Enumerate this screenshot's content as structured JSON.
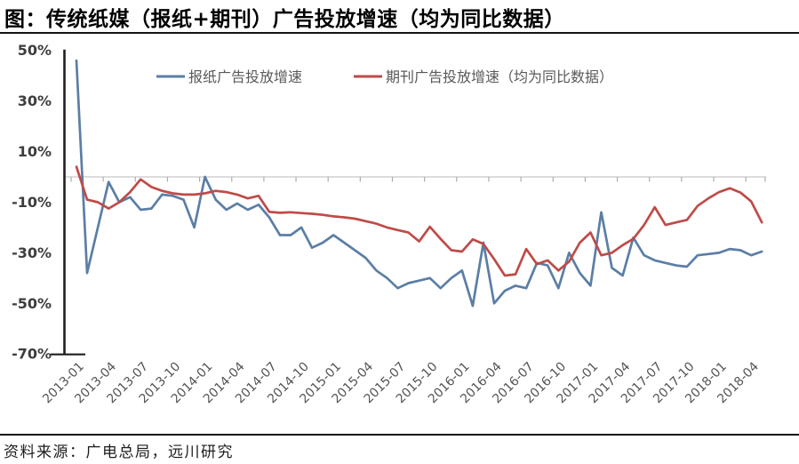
{
  "chart_data": {
    "type": "line",
    "title": "图：传统纸媒（报纸+期刊）广告投放增速（均为同比数据）",
    "xlabel": "",
    "ylabel": "",
    "ylim": [
      -70,
      50
    ],
    "yticks": [
      50,
      30,
      10,
      -10,
      -30,
      -50,
      -70
    ],
    "grid": "horizontal zero line only, with small category tick marks",
    "legend_position": "top-center-inside",
    "x": [
      "2013-01",
      "2013-02",
      "2013-03",
      "2013-04",
      "2013-05",
      "2013-06",
      "2013-07",
      "2013-08",
      "2013-09",
      "2013-10",
      "2013-11",
      "2013-12",
      "2014-01",
      "2014-02",
      "2014-03",
      "2014-04",
      "2014-05",
      "2014-06",
      "2014-07",
      "2014-08",
      "2014-09",
      "2014-10",
      "2014-11",
      "2014-12",
      "2015-01",
      "2015-02",
      "2015-03",
      "2015-04",
      "2015-05",
      "2015-06",
      "2015-07",
      "2015-08",
      "2015-09",
      "2015-10",
      "2015-11",
      "2015-12",
      "2016-01",
      "2016-02",
      "2016-03",
      "2016-04",
      "2016-05",
      "2016-06",
      "2016-07",
      "2016-08",
      "2016-09",
      "2016-10",
      "2016-11",
      "2016-12",
      "2017-01",
      "2017-02",
      "2017-03",
      "2017-04",
      "2017-05",
      "2017-06",
      "2017-07",
      "2017-08",
      "2017-09",
      "2017-10",
      "2017-11",
      "2017-12",
      "2018-01",
      "2018-02",
      "2018-03",
      "2018-04",
      "2018-05"
    ],
    "x_tick_labels": [
      "2013-01",
      "2013-04",
      "2013-07",
      "2013-10",
      "2014-01",
      "2014-04",
      "2014-07",
      "2014-10",
      "2015-01",
      "2015-04",
      "2015-07",
      "2015-10",
      "2016-01",
      "2016-04",
      "2016-07",
      "2016-10",
      "2017-01",
      "2017-04",
      "2017-07",
      "2017-10",
      "2018-01",
      "2018-04"
    ],
    "series": [
      {
        "name": "报纸广告投放增速",
        "color": "#5B7EA6",
        "unit": "%",
        "values": [
          46,
          -38,
          -20,
          -2,
          -10,
          -8,
          -13,
          -12.5,
          -7,
          -7.5,
          -9,
          -20,
          0,
          -9,
          -13,
          -10.5,
          -13,
          -11,
          -16,
          -23,
          -23,
          -20,
          -28,
          -26,
          -23,
          -26,
          -29,
          -32,
          -37,
          -40,
          -44,
          -42,
          -41,
          -40,
          -44,
          -40,
          -37,
          -51,
          -26,
          -50,
          -45,
          -43,
          -44,
          -34,
          -35,
          -44,
          -30,
          -38,
          -43,
          -14,
          -36,
          -39,
          -24,
          -31,
          -33,
          -34,
          -35,
          -35.5,
          -31,
          -30.5,
          -30,
          -28.5,
          -29,
          -31,
          -29.5
        ]
      },
      {
        "name": "期刊广告投放增速（均为同比数据）",
        "color": "#BE4B48",
        "unit": "%",
        "values": [
          4,
          -9,
          -10,
          -12.5,
          -10,
          -6,
          -1,
          -4,
          -5.5,
          -6.5,
          -7,
          -7,
          -6.5,
          -5.5,
          -6,
          -7,
          -8.5,
          -7.5,
          -13.8,
          -14.2,
          -14,
          -14.3,
          -14.6,
          -15,
          -15.6,
          -16,
          -16.5,
          -17.5,
          -18.5,
          -20,
          -21,
          -22,
          -25.5,
          -19.7,
          -24.5,
          -29,
          -29.5,
          -24.7,
          -26.5,
          -32.5,
          -39,
          -38.5,
          -28.5,
          -34.5,
          -33,
          -37,
          -33.5,
          -26,
          -22,
          -31,
          -30,
          -27,
          -24.5,
          -19,
          -12,
          -19,
          -18,
          -17,
          -11.5,
          -8.5,
          -6,
          -4.5,
          -6.2,
          -9.7,
          -18
        ]
      }
    ],
    "colors": {
      "axis": "#1f1f1f",
      "zero_line": "#c8c8c8",
      "tick": "#adadad",
      "y_label": "#3d3d3d",
      "x_label": "#555555",
      "legend_text": "#595959"
    }
  },
  "footer": {
    "source": "资料来源：广电总局，远川研究"
  }
}
